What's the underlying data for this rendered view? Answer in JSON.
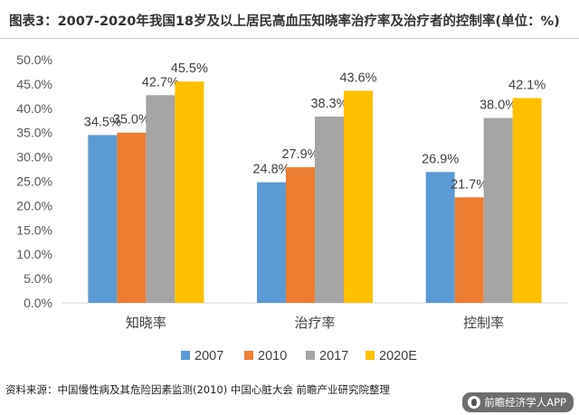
{
  "header": {
    "title": "图表3：2007-2020年我国18岁及以上居民高血压知晓率治疗率及治疗者的控制率(单位：%)"
  },
  "footer": {
    "source": "资料来源：中国慢性病及其危险因素监测(2010) 中国心脏大会 前瞻产业研究院整理",
    "watermark": "前瞻经济学人APP",
    "watermark_icon": "app-logo-icon"
  },
  "chart_data": {
    "type": "bar",
    "categories": [
      "知晓率",
      "治疗率",
      "控制率"
    ],
    "series": [
      {
        "name": "2007",
        "color": "#5b9bd5",
        "values": [
          34.5,
          24.8,
          26.9
        ],
        "labels": [
          "34.5%",
          "24.8%",
          "26.9%"
        ]
      },
      {
        "name": "2010",
        "color": "#ed7d31",
        "values": [
          35.0,
          27.9,
          21.7
        ],
        "labels": [
          "35.0%",
          "27.9%",
          "21.7%"
        ]
      },
      {
        "name": "2017",
        "color": "#a5a5a5",
        "values": [
          42.7,
          38.3,
          38.0
        ],
        "labels": [
          "42.7%",
          "38.3%",
          "38.0%"
        ]
      },
      {
        "name": "2020E",
        "color": "#ffc000",
        "values": [
          45.5,
          43.6,
          42.1
        ],
        "labels": [
          "45.5%",
          "43.6%",
          "42.1%"
        ]
      }
    ],
    "ylim": [
      0,
      50
    ],
    "yticks": [
      0,
      5,
      10,
      15,
      20,
      25,
      30,
      35,
      40,
      45,
      50
    ],
    "ytick_labels": [
      "0.0%",
      "5.0%",
      "10.0%",
      "15.0%",
      "20.0%",
      "25.0%",
      "30.0%",
      "35.0%",
      "40.0%",
      "45.0%",
      "50.0%"
    ],
    "xlabel": "",
    "ylabel": "",
    "grid": false,
    "legend": "bottom"
  }
}
